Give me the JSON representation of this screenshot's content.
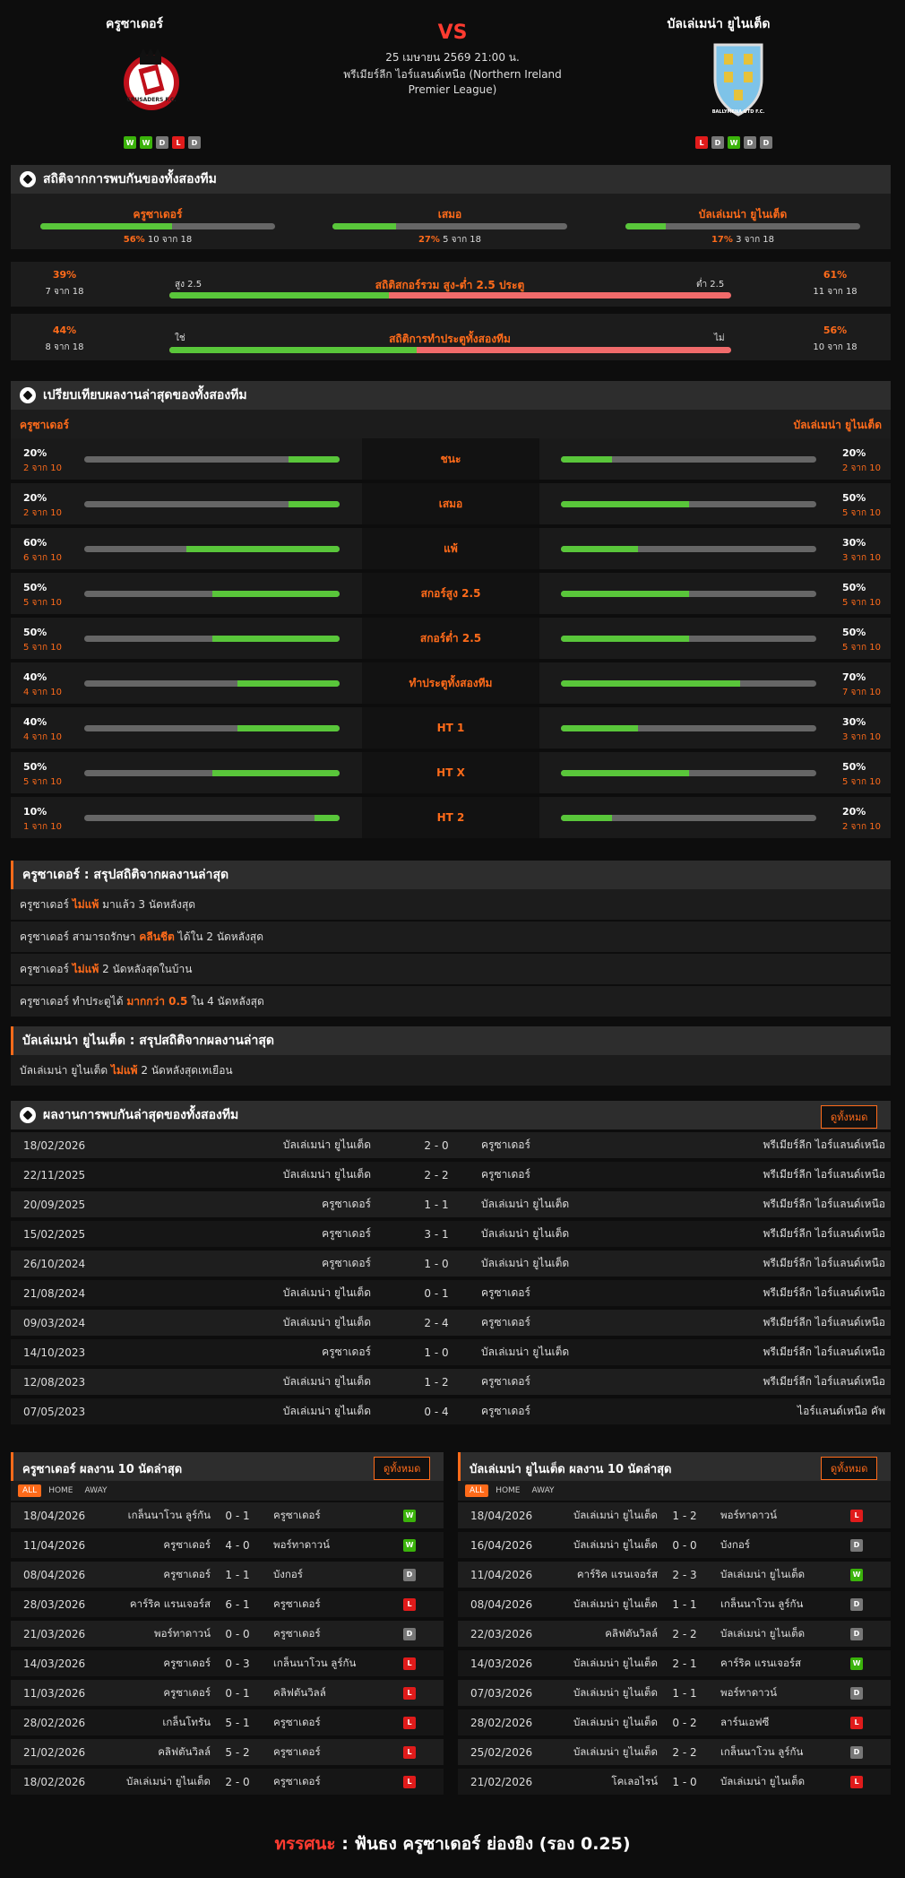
{
  "header": {
    "home": {
      "name": "ครูซาเดอร์",
      "logo_text": "CRUSADERS F.C.",
      "form": [
        "W",
        "W",
        "D",
        "L",
        "D"
      ]
    },
    "away": {
      "name": "บัลเล่เมน่า ยูไนเต็ด",
      "logo_text": "BALLYMENA UTD F.C.",
      "form": [
        "L",
        "D",
        "W",
        "D",
        "D"
      ]
    },
    "vs": "VS",
    "datetime": "25 เมษายน 2569 21:00 น.",
    "league_line1": "พรีเมียร์ลีก ไอร์แลนด์เหนือ (Northern Ireland",
    "league_line2": "Premier League)"
  },
  "h2h_stats": {
    "title": "สถิติจากการพบกันของทั้งสองทีม",
    "home": {
      "label": "ครูซาเดอร์",
      "pct": "56%",
      "count": "10 จาก 18",
      "value": 0.56
    },
    "draw": {
      "label": "เสมอ",
      "pct": "27%",
      "count": "5 จาก 18",
      "value": 0.27
    },
    "away": {
      "label": "บัลเล่เมน่า ยูไนเต็ด",
      "pct": "17%",
      "count": "3 จาก 18",
      "value": 0.17
    },
    "ou": {
      "title": "สถิติสกอร์รวม สูง-ต่ำ 2.5 ประตู",
      "left_label": "สูง 2.5",
      "right_label": "ต่ำ 2.5",
      "left_pct": "39%",
      "left_count": "7 จาก 18",
      "right_pct": "61%",
      "right_count": "11 จาก 18",
      "value": 0.39
    },
    "btts": {
      "title": "สถิติการทำประตูทั้งสองทีม",
      "left_label": "ใช่",
      "right_label": "ไม่",
      "left_pct": "44%",
      "left_count": "8 จาก 18",
      "right_pct": "56%",
      "right_count": "10 จาก 18",
      "value": 0.44
    }
  },
  "compare": {
    "title": "เปรียบเทียบผลงานล่าสุดของทั้งสองทีม",
    "home_label": "ครูซาเดอร์",
    "away_label": "บัลเล่เมน่า ยูไนเต็ด",
    "rows": [
      {
        "label": "ชนะ",
        "h_pct": "20%",
        "h_cnt": "2 จาก 10",
        "h_val": 0.2,
        "a_pct": "20%",
        "a_cnt": "2 จาก 10",
        "a_val": 0.2
      },
      {
        "label": "เสมอ",
        "h_pct": "20%",
        "h_cnt": "2 จาก 10",
        "h_val": 0.2,
        "a_pct": "50%",
        "a_cnt": "5 จาก 10",
        "a_val": 0.5
      },
      {
        "label": "แพ้",
        "h_pct": "60%",
        "h_cnt": "6 จาก 10",
        "h_val": 0.6,
        "a_pct": "30%",
        "a_cnt": "3 จาก 10",
        "a_val": 0.3
      },
      {
        "label": "สกอร์สูง 2.5",
        "h_pct": "50%",
        "h_cnt": "5 จาก 10",
        "h_val": 0.5,
        "a_pct": "50%",
        "a_cnt": "5 จาก 10",
        "a_val": 0.5
      },
      {
        "label": "สกอร์ต่ำ 2.5",
        "h_pct": "50%",
        "h_cnt": "5 จาก 10",
        "h_val": 0.5,
        "a_pct": "50%",
        "a_cnt": "5 จาก 10",
        "a_val": 0.5
      },
      {
        "label": "ทำประตูทั้งสองทีม",
        "h_pct": "40%",
        "h_cnt": "4 จาก 10",
        "h_val": 0.4,
        "a_pct": "70%",
        "a_cnt": "7 จาก 10",
        "a_val": 0.7
      },
      {
        "label": "HT 1",
        "h_pct": "40%",
        "h_cnt": "4 จาก 10",
        "h_val": 0.4,
        "a_pct": "30%",
        "a_cnt": "3 จาก 10",
        "a_val": 0.3
      },
      {
        "label": "HT X",
        "h_pct": "50%",
        "h_cnt": "5 จาก 10",
        "h_val": 0.5,
        "a_pct": "50%",
        "a_cnt": "5 จาก 10",
        "a_val": 0.5
      },
      {
        "label": "HT 2",
        "h_pct": "10%",
        "h_cnt": "1 จาก 10",
        "h_val": 0.1,
        "a_pct": "20%",
        "a_cnt": "2 จาก 10",
        "a_val": 0.2
      }
    ]
  },
  "home_summary": {
    "title": "ครูซาเดอร์ : สรุปสถิติจากผลงานล่าสุด",
    "lines": [
      [
        {
          "t": "ครูซาเดอร์ "
        },
        {
          "t": "ไม่แพ้",
          "hl": true
        },
        {
          "t": " มาแล้ว 3 นัดหลังสุด"
        }
      ],
      [
        {
          "t": "ครูซาเดอร์ สามารถรักษา "
        },
        {
          "t": "คลีนชีต",
          "hl": true
        },
        {
          "t": " ได้ใน 2 นัดหลังสุด"
        }
      ],
      [
        {
          "t": "ครูซาเดอร์ "
        },
        {
          "t": "ไม่แพ้",
          "hl": true
        },
        {
          "t": " 2 นัดหลังสุดในบ้าน"
        }
      ],
      [
        {
          "t": "ครูซาเดอร์ ทำประตูได้ "
        },
        {
          "t": "มากกว่า 0.5",
          "hl": true
        },
        {
          "t": " ใน 4 นัดหลังสุด"
        }
      ]
    ]
  },
  "away_summary": {
    "title": "บัลเล่เมน่า ยูไนเต็ด : สรุปสถิติจากผลงานล่าสุด",
    "lines": [
      [
        {
          "t": "บัลเล่เมน่า ยูไนเต็ด "
        },
        {
          "t": "ไม่แพ้",
          "hl": true
        },
        {
          "t": " 2 นัดหลังสุดเทเยือน"
        }
      ]
    ]
  },
  "h2h": {
    "title": "ผลงานการพบกันล่าสุดของทั้งสองทีม",
    "view_all": "ดูทั้งหมด",
    "rows": [
      {
        "date": "18/02/2026",
        "home": "บัลเล่เมน่า ยูไนเต็ด",
        "score": "2 - 0",
        "away": "ครูซาเดอร์",
        "comp": "พรีเมียร์ลีก ไอร์แลนด์เหนือ"
      },
      {
        "date": "22/11/2025",
        "home": "บัลเล่เมน่า ยูไนเต็ด",
        "score": "2 - 2",
        "away": "ครูซาเดอร์",
        "comp": "พรีเมียร์ลีก ไอร์แลนด์เหนือ"
      },
      {
        "date": "20/09/2025",
        "home": "ครูซาเดอร์",
        "score": "1 - 1",
        "away": "บัลเล่เมน่า ยูไนเต็ด",
        "comp": "พรีเมียร์ลีก ไอร์แลนด์เหนือ"
      },
      {
        "date": "15/02/2025",
        "home": "ครูซาเดอร์",
        "score": "3 - 1",
        "away": "บัลเล่เมน่า ยูไนเต็ด",
        "comp": "พรีเมียร์ลีก ไอร์แลนด์เหนือ"
      },
      {
        "date": "26/10/2024",
        "home": "ครูซาเดอร์",
        "score": "1 - 0",
        "away": "บัลเล่เมน่า ยูไนเต็ด",
        "comp": "พรีเมียร์ลีก ไอร์แลนด์เหนือ"
      },
      {
        "date": "21/08/2024",
        "home": "บัลเล่เมน่า ยูไนเต็ด",
        "score": "0 - 1",
        "away": "ครูซาเดอร์",
        "comp": "พรีเมียร์ลีก ไอร์แลนด์เหนือ"
      },
      {
        "date": "09/03/2024",
        "home": "บัลเล่เมน่า ยูไนเต็ด",
        "score": "2 - 4",
        "away": "ครูซาเดอร์",
        "comp": "พรีเมียร์ลีก ไอร์แลนด์เหนือ"
      },
      {
        "date": "14/10/2023",
        "home": "ครูซาเดอร์",
        "score": "1 - 0",
        "away": "บัลเล่เมน่า ยูไนเต็ด",
        "comp": "พรีเมียร์ลีก ไอร์แลนด์เหนือ"
      },
      {
        "date": "12/08/2023",
        "home": "บัลเล่เมน่า ยูไนเต็ด",
        "score": "1 - 2",
        "away": "ครูซาเดอร์",
        "comp": "พรีเมียร์ลีก ไอร์แลนด์เหนือ"
      },
      {
        "date": "07/05/2023",
        "home": "บัลเล่เมน่า ยูไนเต็ด",
        "score": "0 - 4",
        "away": "ครูซาเดอร์",
        "comp": "ไอร์แลนด์เหนือ คัพ"
      }
    ]
  },
  "home_last10": {
    "title": "ครูซาเดอร์ ผลงาน 10 นัดล่าสุด",
    "view_all": "ดูทั้งหมด",
    "tabs": [
      "ALL",
      "HOME",
      "AWAY"
    ],
    "rows": [
      {
        "date": "18/04/2026",
        "home": "เกล็นนาโวน ลูร์กัน",
        "score": "0 - 1",
        "away": "ครูซาเดอร์",
        "res": "W"
      },
      {
        "date": "11/04/2026",
        "home": "ครูซาเดอร์",
        "score": "4 - 0",
        "away": "พอร์ทาดาวน์",
        "res": "W"
      },
      {
        "date": "08/04/2026",
        "home": "ครูซาเดอร์",
        "score": "1 - 1",
        "away": "บังกอร์",
        "res": "D"
      },
      {
        "date": "28/03/2026",
        "home": "คาร์ริค แรนเจอร์ส",
        "score": "6 - 1",
        "away": "ครูซาเดอร์",
        "res": "L"
      },
      {
        "date": "21/03/2026",
        "home": "พอร์ทาดาวน์",
        "score": "0 - 0",
        "away": "ครูซาเดอร์",
        "res": "D"
      },
      {
        "date": "14/03/2026",
        "home": "ครูซาเดอร์",
        "score": "0 - 3",
        "away": "เกล็นนาโวน ลูร์กัน",
        "res": "L"
      },
      {
        "date": "11/03/2026",
        "home": "ครูซาเดอร์",
        "score": "0 - 1",
        "away": "คลิฟตันวิลล์",
        "res": "L"
      },
      {
        "date": "28/02/2026",
        "home": "เกล็นโทรัน",
        "score": "5 - 1",
        "away": "ครูซาเดอร์",
        "res": "L"
      },
      {
        "date": "21/02/2026",
        "home": "คลิฟตันวิลล์",
        "score": "5 - 2",
        "away": "ครูซาเดอร์",
        "res": "L"
      },
      {
        "date": "18/02/2026",
        "home": "บัลเล่เมน่า ยูไนเต็ด",
        "score": "2 - 0",
        "away": "ครูซาเดอร์",
        "res": "L"
      }
    ]
  },
  "away_last10": {
    "title": "บัลเล่เมน่า ยูไนเต็ด ผลงาน 10 นัดล่าสุด",
    "view_all": "ดูทั้งหมด",
    "tabs": [
      "ALL",
      "HOME",
      "AWAY"
    ],
    "rows": [
      {
        "date": "18/04/2026",
        "home": "บัลเล่เมน่า ยูไนเต็ด",
        "score": "1 - 2",
        "away": "พอร์ทาดาวน์",
        "res": "L"
      },
      {
        "date": "16/04/2026",
        "home": "บัลเล่เมน่า ยูไนเต็ด",
        "score": "0 - 0",
        "away": "บังกอร์",
        "res": "D"
      },
      {
        "date": "11/04/2026",
        "home": "คาร์ริค แรนเจอร์ส",
        "score": "2 - 3",
        "away": "บัลเล่เมน่า ยูไนเต็ด",
        "res": "W"
      },
      {
        "date": "08/04/2026",
        "home": "บัลเล่เมน่า ยูไนเต็ด",
        "score": "1 - 1",
        "away": "เกล็นนาโวน ลูร์กัน",
        "res": "D"
      },
      {
        "date": "22/03/2026",
        "home": "คลิฟตันวิลล์",
        "score": "2 - 2",
        "away": "บัลเล่เมน่า ยูไนเต็ด",
        "res": "D"
      },
      {
        "date": "14/03/2026",
        "home": "บัลเล่เมน่า ยูไนเต็ด",
        "score": "2 - 1",
        "away": "คาร์ริค แรนเจอร์ส",
        "res": "W"
      },
      {
        "date": "07/03/2026",
        "home": "บัลเล่เมน่า ยูไนเต็ด",
        "score": "1 - 1",
        "away": "พอร์ทาดาวน์",
        "res": "D"
      },
      {
        "date": "28/02/2026",
        "home": "บัลเล่เมน่า ยูไนเต็ด",
        "score": "0 - 2",
        "away": "ลาร์นเอฟซี",
        "res": "L"
      },
      {
        "date": "25/02/2026",
        "home": "บัลเล่เมน่า ยูไนเต็ด",
        "score": "2 - 2",
        "away": "เกล็นนาโวน ลูร์กัน",
        "res": "D"
      },
      {
        "date": "21/02/2026",
        "home": "โคเลอไรน์",
        "score": "1 - 0",
        "away": "บัลเล่เมน่า ยูไนเต็ด",
        "res": "L"
      }
    ]
  },
  "prediction": {
    "label": "ทรรศนะ",
    "sep": " : ",
    "text": "ฟันธง ครูซาเดอร์ ย่องยิง (รอง 0.25)"
  }
}
